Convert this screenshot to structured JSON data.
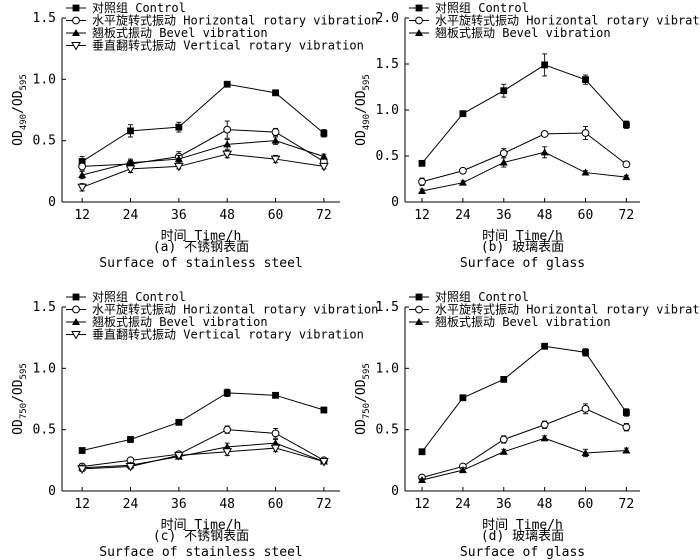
{
  "chart_data": [
    {
      "type": "line",
      "panel": "a",
      "caption_line1": "(a) 不锈钢表面",
      "caption_line2": "Surface of stainless steel",
      "xlabel": "时间 Time/h",
      "ylabel_main": "OD",
      "ylabel_sub1": "490",
      "ylabel_sep": "/OD",
      "ylabel_sub2": "595",
      "x": [
        12,
        24,
        36,
        48,
        60,
        72
      ],
      "xlim": [
        7,
        76
      ],
      "ylim": [
        0,
        1.5
      ],
      "yticks": [
        0,
        0.5,
        1.0,
        1.5
      ],
      "ytick_labels": [
        "0",
        "0.5",
        "1.0",
        "1.5"
      ],
      "legend_position": "top-left",
      "series": [
        {
          "name": "对照组 Control",
          "marker": "square-filled",
          "values": [
            0.33,
            0.58,
            0.61,
            0.96,
            0.89,
            0.56
          ],
          "errors": [
            0.04,
            0.05,
            0.04,
            0.02,
            0.02,
            0.03
          ]
        },
        {
          "name": "水平旋转式振动 Horizontal rotary vibration",
          "marker": "circle-open",
          "values": [
            0.29,
            0.31,
            0.37,
            0.59,
            0.57,
            0.33
          ],
          "errors": [
            0.03,
            0.03,
            0.04,
            0.07,
            0.03,
            0.03
          ]
        },
        {
          "name": "翘板式振动 Bevel vibration",
          "marker": "triangle-filled",
          "values": [
            0.22,
            0.32,
            0.35,
            0.47,
            0.5,
            0.37
          ],
          "errors": [
            0.03,
            0.03,
            0.03,
            0.04,
            0.03,
            0.02
          ]
        },
        {
          "name": "垂直翻转式振动 Vertical rotary vibration",
          "marker": "triangle-down-open",
          "values": [
            0.12,
            0.27,
            0.29,
            0.39,
            0.35,
            0.29
          ],
          "errors": [
            0.03,
            0.03,
            0.02,
            0.03,
            0.03,
            0.02
          ]
        }
      ]
    },
    {
      "type": "line",
      "panel": "b",
      "caption_line1": "(b) 玻璃表面",
      "caption_line2": "Surface of glass",
      "xlabel": "时间 Time/h",
      "ylabel_main": "OD",
      "ylabel_sub1": "490",
      "ylabel_sep": "/OD",
      "ylabel_sub2": "595",
      "x": [
        12,
        24,
        36,
        48,
        60,
        72
      ],
      "xlim": [
        7,
        76
      ],
      "ylim": [
        0,
        2.0
      ],
      "yticks": [
        0,
        0.5,
        1.0,
        1.5,
        2.0
      ],
      "ytick_labels": [
        "0",
        "0.5",
        "1.0",
        "1.5",
        "2.0"
      ],
      "legend_position": "top-left",
      "series": [
        {
          "name": "对照组 Control",
          "marker": "square-filled",
          "values": [
            0.42,
            0.96,
            1.21,
            1.49,
            1.33,
            0.84
          ],
          "errors": [
            0.02,
            0.03,
            0.07,
            0.12,
            0.05,
            0.04
          ]
        },
        {
          "name": "水平旋转式振动 Horizontal rotary vibration",
          "marker": "circle-open",
          "values": [
            0.22,
            0.34,
            0.53,
            0.74,
            0.75,
            0.41
          ],
          "errors": [
            0.04,
            0.02,
            0.05,
            0.02,
            0.07,
            0.03
          ]
        },
        {
          "name": "翘板式振动 Bevel vibration",
          "marker": "triangle-filled",
          "values": [
            0.12,
            0.21,
            0.43,
            0.54,
            0.32,
            0.27
          ],
          "errors": [
            0.02,
            0.02,
            0.05,
            0.06,
            0.02,
            0.02
          ]
        }
      ]
    },
    {
      "type": "line",
      "panel": "c",
      "caption_line1": "(c) 不锈钢表面",
      "caption_line2": "Surface of stainless steel",
      "xlabel": "时间 Time/h",
      "ylabel_main": "OD",
      "ylabel_sub1": "750",
      "ylabel_sep": "/OD",
      "ylabel_sub2": "595",
      "x": [
        12,
        24,
        36,
        48,
        60,
        72
      ],
      "xlim": [
        7,
        76
      ],
      "ylim": [
        0,
        1.5
      ],
      "yticks": [
        0,
        0.5,
        1.0,
        1.5
      ],
      "ytick_labels": [
        "0",
        "0.5",
        "1.0",
        "1.5"
      ],
      "legend_position": "top-left",
      "series": [
        {
          "name": "对照组 Control",
          "marker": "square-filled",
          "values": [
            0.33,
            0.42,
            0.56,
            0.8,
            0.78,
            0.66
          ],
          "errors": [
            0.02,
            0.01,
            0.02,
            0.03,
            0.02,
            0.02
          ]
        },
        {
          "name": "水平旋转式振动 Horizontal rotary vibration",
          "marker": "circle-open",
          "values": [
            0.2,
            0.25,
            0.3,
            0.5,
            0.47,
            0.25
          ],
          "errors": [
            0.02,
            0.02,
            0.02,
            0.03,
            0.04,
            0.02
          ]
        },
        {
          "name": "翘板式振动 Bevel vibration",
          "marker": "triangle-filled",
          "values": [
            0.19,
            0.21,
            0.28,
            0.36,
            0.39,
            0.24
          ],
          "errors": [
            0.02,
            0.02,
            0.02,
            0.03,
            0.03,
            0.02
          ]
        },
        {
          "name": "垂直翻转式振动 Vertical rotary vibration",
          "marker": "triangle-down-open",
          "values": [
            0.18,
            0.2,
            0.29,
            0.32,
            0.35,
            0.24
          ],
          "errors": [
            0.02,
            0.02,
            0.02,
            0.03,
            0.03,
            0.02
          ]
        }
      ]
    },
    {
      "type": "line",
      "panel": "d",
      "caption_line1": "(d) 玻璃表面",
      "caption_line2": "Surface of glass",
      "xlabel": "时间 Time/h",
      "ylabel_main": "OD",
      "ylabel_sub1": "750",
      "ylabel_sep": "/OD",
      "ylabel_sub2": "595",
      "x": [
        12,
        24,
        36,
        48,
        60,
        72
      ],
      "xlim": [
        7,
        76
      ],
      "ylim": [
        0,
        1.5
      ],
      "yticks": [
        0,
        0.5,
        1.0,
        1.5
      ],
      "ytick_labels": [
        "0",
        "0.5",
        "1.0",
        "1.5"
      ],
      "legend_position": "top-left",
      "series": [
        {
          "name": "对照组 Control",
          "marker": "square-filled",
          "values": [
            0.32,
            0.76,
            0.91,
            1.18,
            1.13,
            0.64
          ],
          "errors": [
            0.01,
            0.02,
            0.02,
            0.01,
            0.03,
            0.03
          ]
        },
        {
          "name": "水平旋转式振动 Horizontal rotary vibration",
          "marker": "circle-open",
          "values": [
            0.11,
            0.2,
            0.42,
            0.54,
            0.67,
            0.52
          ],
          "errors": [
            0.02,
            0.02,
            0.03,
            0.03,
            0.04,
            0.03
          ]
        },
        {
          "name": "翘板式振动 Bevel vibration",
          "marker": "triangle-filled",
          "values": [
            0.09,
            0.17,
            0.32,
            0.43,
            0.31,
            0.33
          ],
          "errors": [
            0.01,
            0.02,
            0.02,
            0.02,
            0.03,
            0.02
          ]
        }
      ]
    }
  ]
}
